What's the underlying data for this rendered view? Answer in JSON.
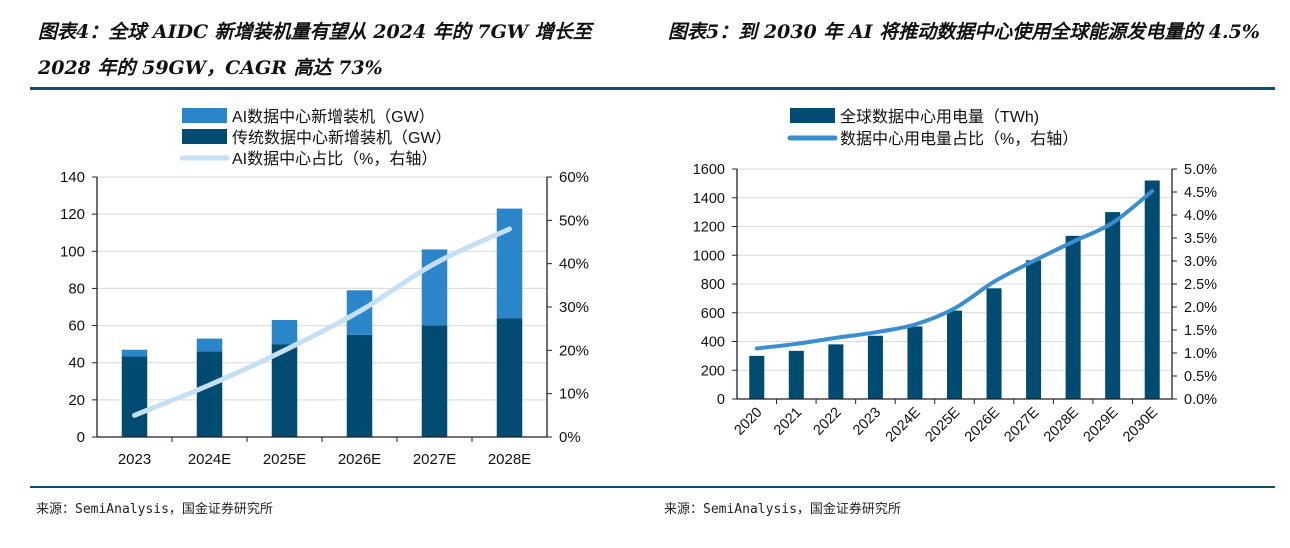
{
  "left": {
    "title": "图表4：全球 AIDC 新增装机量有望从 2024 年的 7GW 增长至 2028 年的 59GW，CAGR 高达 73%",
    "source": "来源：SemiAnalysis，国金证券研究所"
  },
  "right": {
    "title": "图表5：到 2030 年 AI 将推动数据中心使用全球能源发电量的 4.5%",
    "source": "来源：SemiAnalysis，国金证券研究所"
  },
  "chart_data": [
    {
      "type": "bar",
      "stacked": true,
      "categories": [
        "2023",
        "2024E",
        "2025E",
        "2026E",
        "2027E",
        "2028E"
      ],
      "series": [
        {
          "name": "传统数据中心新增装机（GW）",
          "values": [
            43.5,
            46,
            50,
            55,
            60,
            64
          ],
          "color": "#004b72",
          "axis": "left"
        },
        {
          "name": "AI数据中心新增装机（GW）",
          "values": [
            3.5,
            7,
            13,
            24,
            41,
            59
          ],
          "color": "#2a86c8",
          "axis": "left"
        },
        {
          "name": "AI数据中心占比（%，右轴）",
          "type": "line",
          "values": [
            5,
            12,
            20,
            29,
            40,
            48
          ],
          "color": "#c6e0f3",
          "axis": "right"
        }
      ],
      "legend_order": [
        1,
        0,
        2
      ],
      "yticks": [
        "0",
        "20",
        "40",
        "60",
        "80",
        "100",
        "120",
        "140"
      ],
      "y2ticks": [
        "0%",
        "10%",
        "20%",
        "30%",
        "40%",
        "50%",
        "60%"
      ],
      "ylim": [
        0,
        140
      ],
      "y2lim": [
        0,
        60
      ],
      "grid": true,
      "legend": "top"
    },
    {
      "type": "bar",
      "categories": [
        "2020",
        "2021",
        "2022",
        "2023",
        "2024E",
        "2025E",
        "2026E",
        "2027E",
        "2028E",
        "2029E",
        "2030E"
      ],
      "series": [
        {
          "name": "全球数据中心用电量（TWh)",
          "values": [
            300,
            335,
            380,
            440,
            505,
            615,
            770,
            965,
            1135,
            1300,
            1520
          ],
          "color": "#004b72",
          "axis": "left"
        },
        {
          "name": "数据中心用电量占比（%，右轴）",
          "type": "line",
          "values": [
            1.1,
            1.2,
            1.33,
            1.45,
            1.62,
            1.97,
            2.55,
            3.0,
            3.42,
            3.83,
            4.52
          ],
          "color": "#3a8fd0",
          "axis": "right"
        }
      ],
      "legend_order": [
        0,
        1
      ],
      "yticks": [
        "0",
        "200",
        "400",
        "600",
        "800",
        "1000",
        "1200",
        "1400",
        "1600"
      ],
      "y2ticks": [
        "0.0%",
        "0.5%",
        "1.0%",
        "1.5%",
        "2.0%",
        "2.5%",
        "3.0%",
        "3.5%",
        "4.0%",
        "4.5%",
        "5.0%"
      ],
      "ylim": [
        0,
        1600
      ],
      "y2lim": [
        0,
        5
      ],
      "grid": true,
      "legend": "top",
      "xlabel_rotation": -45
    }
  ]
}
